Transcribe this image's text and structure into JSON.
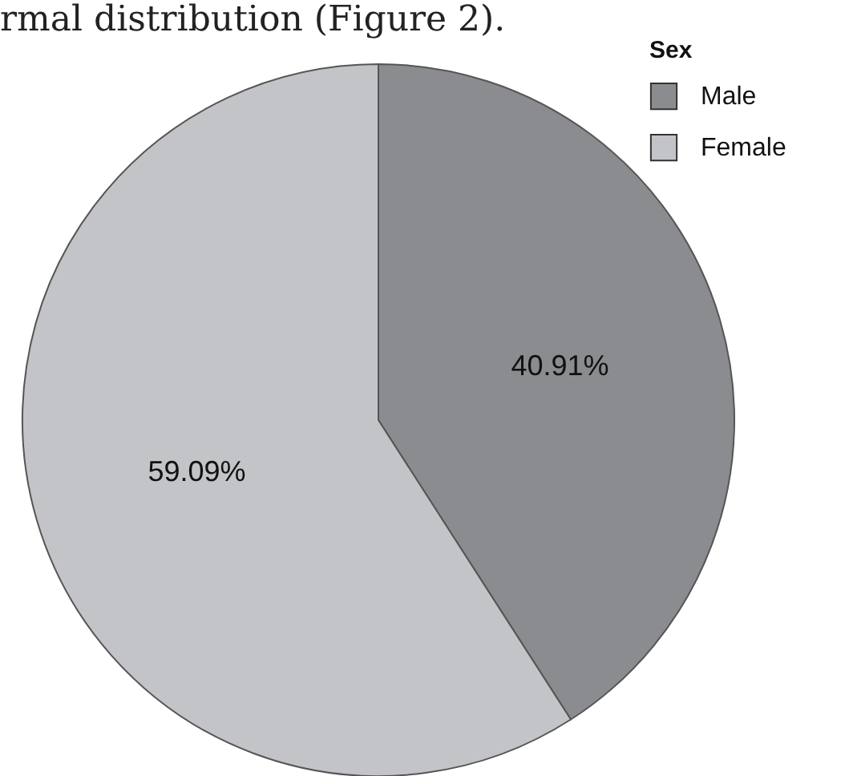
{
  "chart_data": {
    "type": "pie",
    "legend_title": "Sex",
    "legend": "top right",
    "annotations": [
      "rmal distribution (Figure 2)."
    ],
    "categories": [
      "Male",
      "Female"
    ],
    "values": [
      40.91,
      59.09
    ],
    "value_labels": [
      "40.91%",
      "59.09%"
    ],
    "colors": [
      "#8b8c90",
      "#c3c4c8"
    ]
  }
}
